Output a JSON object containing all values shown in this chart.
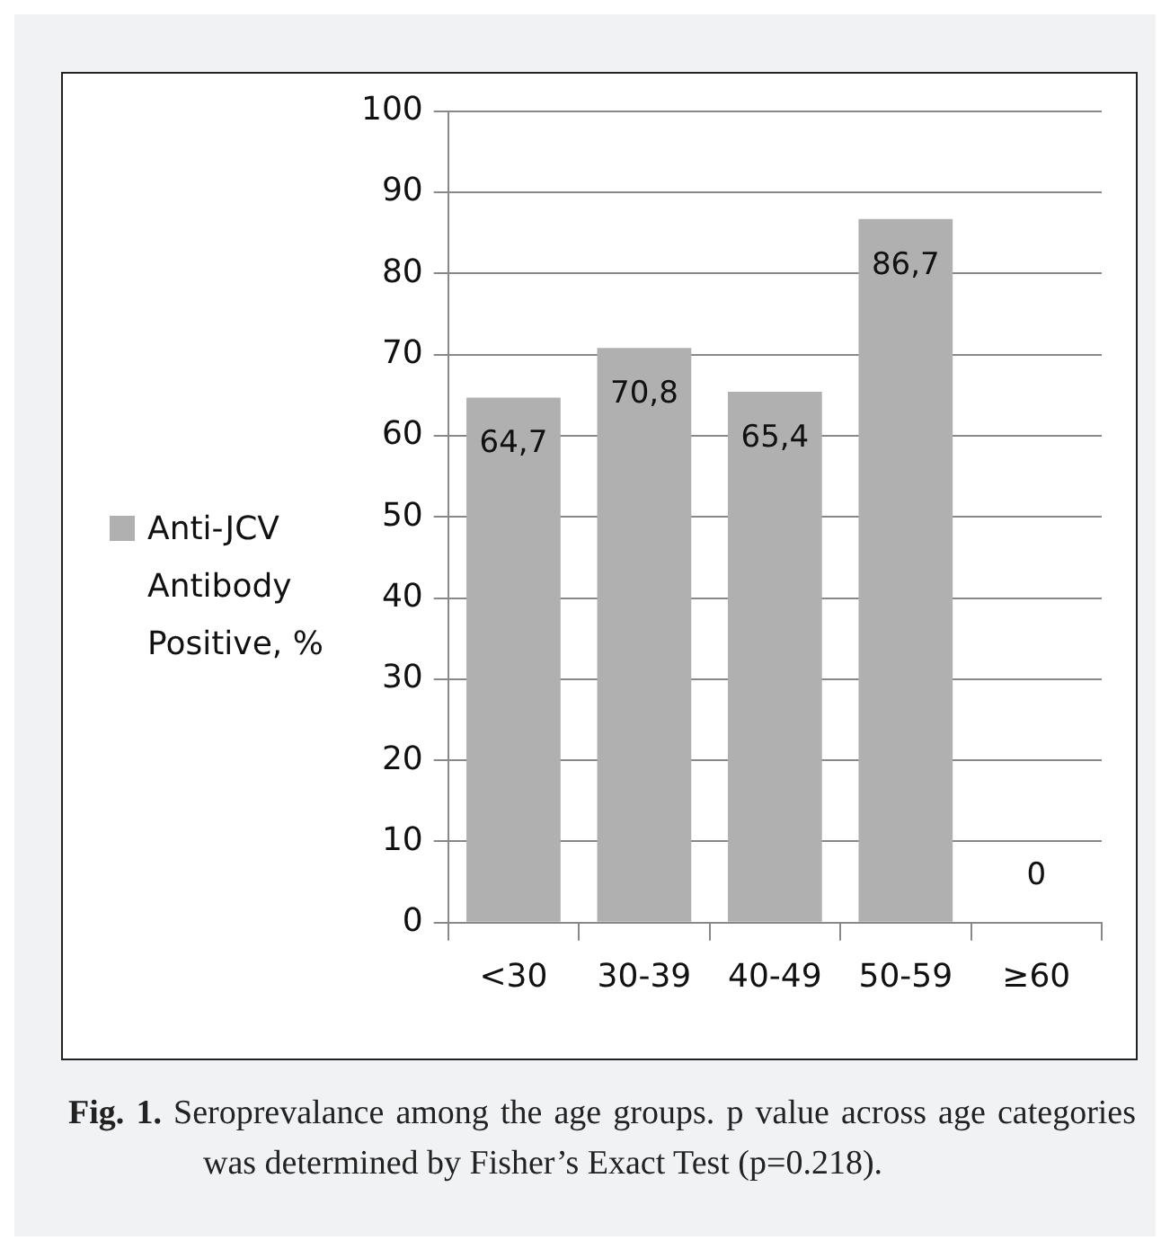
{
  "chart_data": {
    "type": "bar",
    "categories": [
      "<30",
      "30-39",
      "40-49",
      "50-59",
      "≥60"
    ],
    "series": [
      {
        "name": "Anti-JCV Antibody Positive, %",
        "color": "#b0b0b0",
        "values": [
          64.7,
          70.8,
          65.4,
          86.7,
          0
        ],
        "value_labels": [
          "64,7",
          "70,8",
          "65,4",
          "86,7",
          "0"
        ]
      }
    ],
    "ylim": [
      0,
      100
    ],
    "yticks": [
      0,
      10,
      20,
      30,
      40,
      50,
      60,
      70,
      80,
      90,
      100
    ],
    "grid": "y",
    "legend": "left",
    "annotations": [
      "Fig. 1.",
      "Seroprevalance among the age groups. p value across age categories was determined by Fisher’s Exact Test (p=0.218)."
    ]
  }
}
